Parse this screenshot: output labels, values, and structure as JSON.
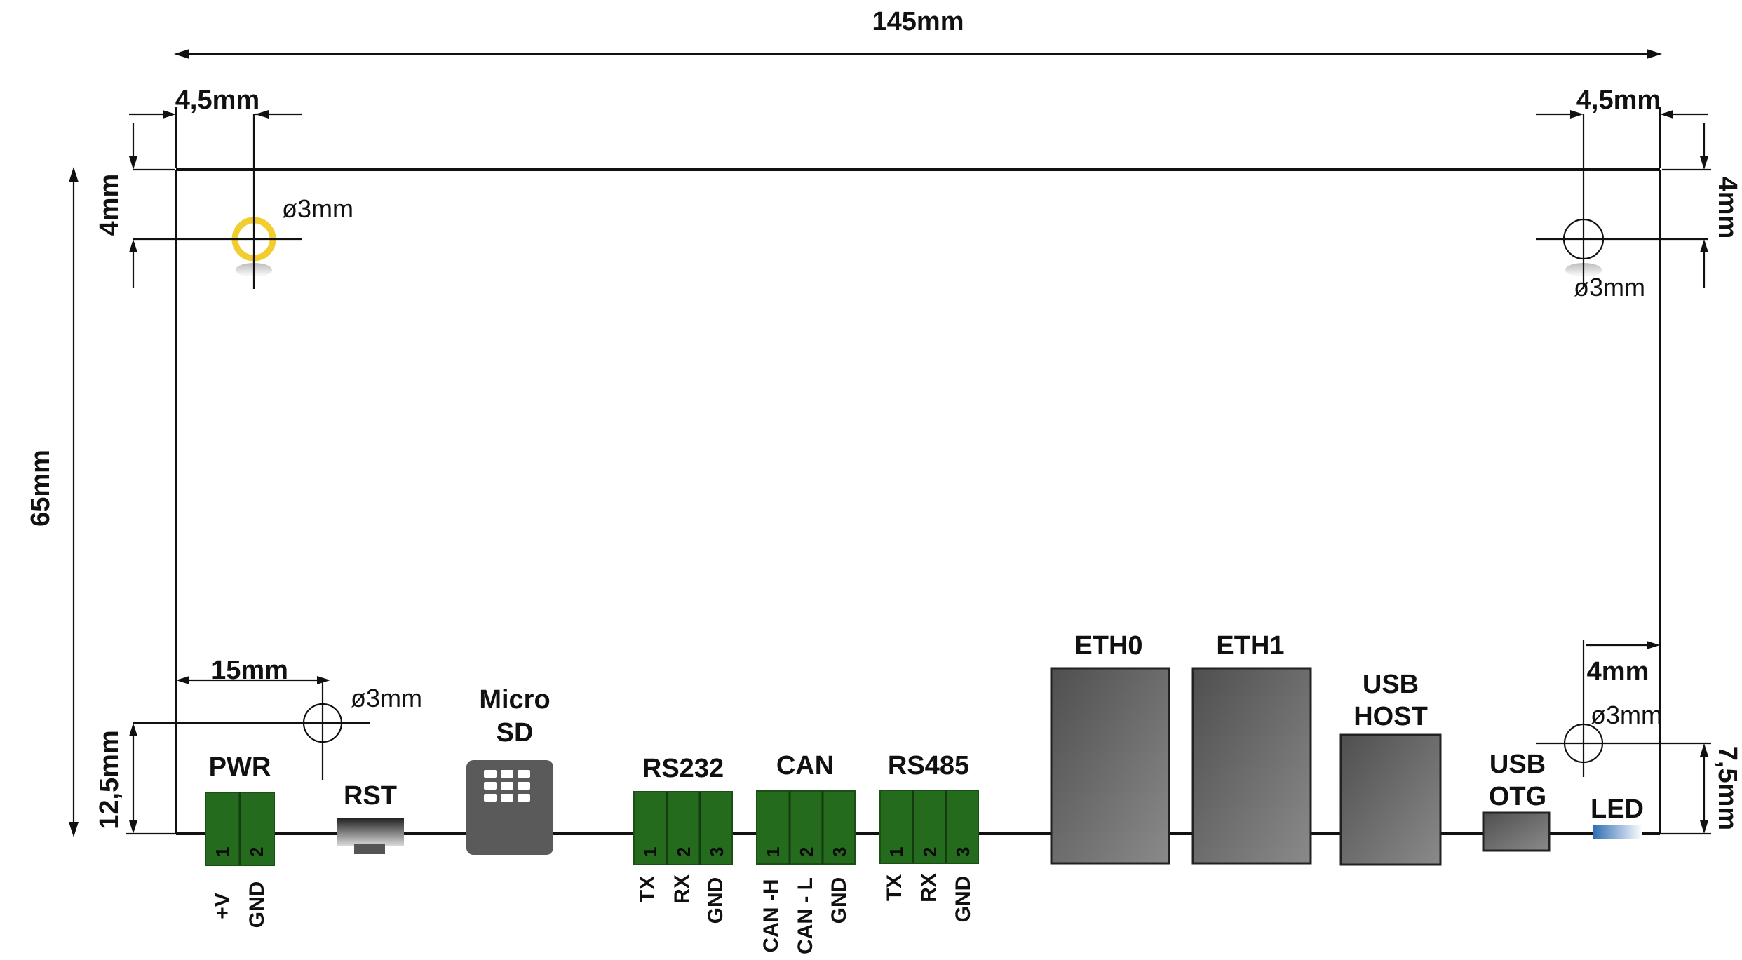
{
  "dimensions": {
    "width": "145mm",
    "height": "65mm",
    "hole_x_left": "4,5mm",
    "hole_x_right": "4,5mm",
    "hole_y_left": "4mm",
    "hole_y_right": "4mm",
    "pwr_hole_x": "15mm",
    "pwr_hole_y": "12,5mm",
    "led_hole_x": "4mm",
    "led_hole_y": "7,5mm"
  },
  "holes": {
    "top_left": "ø3mm",
    "top_right": "ø3mm",
    "bottom_left": "ø3mm",
    "bottom_right": "ø3mm"
  },
  "connectors": {
    "pwr": {
      "label": "PWR",
      "pins": [
        "1",
        "2"
      ],
      "signals": [
        "+V",
        "GND"
      ]
    },
    "rst": {
      "label": "RST"
    },
    "microsd": {
      "label_line1": "Micro",
      "label_line2": "SD"
    },
    "rs232": {
      "label": "RS232",
      "pins": [
        "1",
        "2",
        "3"
      ],
      "signals": [
        "TX",
        "RX",
        "GND"
      ]
    },
    "can": {
      "label": "CAN",
      "pins": [
        "1",
        "2",
        "3"
      ],
      "signals": [
        "CAN -H",
        "CAN - L",
        "GND"
      ]
    },
    "rs485": {
      "label": "RS485",
      "pins": [
        "1",
        "2",
        "3"
      ],
      "signals": [
        "TX",
        "RX",
        "GND"
      ]
    },
    "eth0": {
      "label": "ETH0"
    },
    "eth1": {
      "label": "ETH1"
    },
    "usb_host": {
      "label_line1": "USB",
      "label_line2": "HOST"
    },
    "usb_otg": {
      "label_line1": "USB",
      "label_line2": "OTG"
    },
    "led": {
      "label": "LED"
    }
  },
  "colors": {
    "terminal_green": "#256b1e",
    "terminal_stripe": "#1b4f16",
    "port_gray": "#6a6a6a",
    "highlight_hole": "#f2cd2f",
    "led_blue": "#2f6fb3"
  }
}
